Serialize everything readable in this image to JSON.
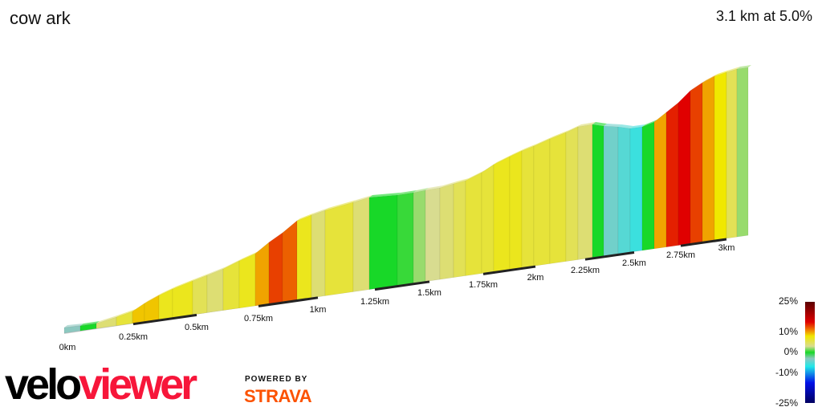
{
  "title": "cow ark",
  "summary": "3.1 km at 5.0%",
  "chart_data": {
    "type": "area",
    "title": "cow ark",
    "distance_km": 3.1,
    "average_grade_pct": 5.0,
    "x_tick_labels": [
      "0km",
      "0.25km",
      "0.5km",
      "0.75km",
      "1km",
      "1.25km",
      "1.5km",
      "1.75km",
      "2km",
      "2.25km",
      "2.5km",
      "2.75km",
      "3km"
    ],
    "segment_grades_pct": [
      -3,
      0,
      4,
      6,
      9,
      9,
      7,
      7,
      5,
      4,
      6,
      7,
      10,
      13,
      12,
      7,
      4,
      6,
      4,
      0,
      0.5,
      2,
      3,
      4,
      5,
      6,
      6,
      7,
      7,
      6,
      6,
      6,
      5,
      4,
      0,
      -4,
      -5,
      -6,
      0,
      10,
      14,
      15,
      13,
      10,
      8,
      5,
      2
    ],
    "colorscale": {
      "labels": [
        "25%",
        "10%",
        "0%",
        "-10%",
        "-25%"
      ],
      "stops": [
        [
          25,
          "#5a0000"
        ],
        [
          15,
          "#e00000"
        ],
        [
          11,
          "#f08000"
        ],
        [
          8,
          "#f0e800"
        ],
        [
          3,
          "#d8dc90"
        ],
        [
          0,
          "#18d828"
        ],
        [
          -3,
          "#8cc8c0"
        ],
        [
          -7,
          "#20e8e8"
        ],
        [
          -15,
          "#0010e8"
        ],
        [
          -25,
          "#000060"
        ]
      ]
    }
  },
  "logo": {
    "part1": "velo",
    "part2": "viewer",
    "powered": "POWERED BY",
    "strava": "STRAVA"
  }
}
